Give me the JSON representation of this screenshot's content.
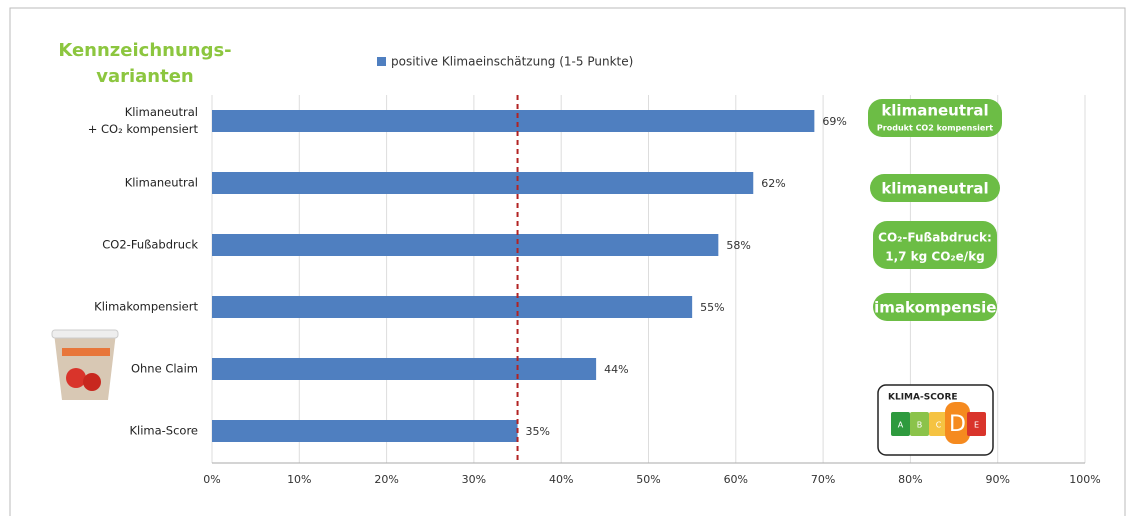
{
  "chart_data": {
    "type": "hbar",
    "title": "Kennzeichnungs-\nvarianten",
    "categories": [
      "Klimaneutral\n+ CO₂ kompensiert",
      "Klimaneutral",
      "CO2-Fußabdruck",
      "Klimakompensiert",
      "Ohne Claim",
      "Klima-Score"
    ],
    "series": [
      {
        "name": "positive Klimaeinschätzung (1-5 Punkte)",
        "color": "#4f7fc0",
        "values": [
          69,
          62,
          58,
          55,
          44,
          35
        ],
        "value_labels": [
          "69%",
          "62%",
          "58%",
          "55%",
          "44%",
          "35%"
        ]
      }
    ],
    "xlim": [
      0,
      100
    ],
    "xticks": [
      {
        "value": 0,
        "label": "0%"
      },
      {
        "value": 10,
        "label": "10%"
      },
      {
        "value": 20,
        "label": "20%"
      },
      {
        "value": 30,
        "label": "30%"
      },
      {
        "value": 40,
        "label": "40%"
      },
      {
        "value": 50,
        "label": "50%"
      },
      {
        "value": 60,
        "label": "60%"
      },
      {
        "value": 70,
        "label": "70%"
      },
      {
        "value": 80,
        "label": "80%"
      },
      {
        "value": 90,
        "label": "90%"
      },
      {
        "value": 100,
        "label": "100%"
      }
    ],
    "grid": true,
    "reference_line": {
      "value": 35,
      "color": "#b22222"
    },
    "legend": "top"
  },
  "badges": [
    {
      "lines": [
        "klimaneutral",
        "Produkt CO2 kompensiert"
      ]
    },
    {
      "lines": [
        "klimaneutral"
      ]
    },
    {
      "lines": [
        "CO₂-Fußabdruck:",
        "1,7 kg CO₂e/kg"
      ]
    },
    {
      "lines": [
        "klimakompensiert"
      ]
    }
  ],
  "klima_score": {
    "title": "KLIMA-SCORE",
    "grades": [
      "A",
      "B",
      "C",
      "D",
      "E"
    ]
  }
}
